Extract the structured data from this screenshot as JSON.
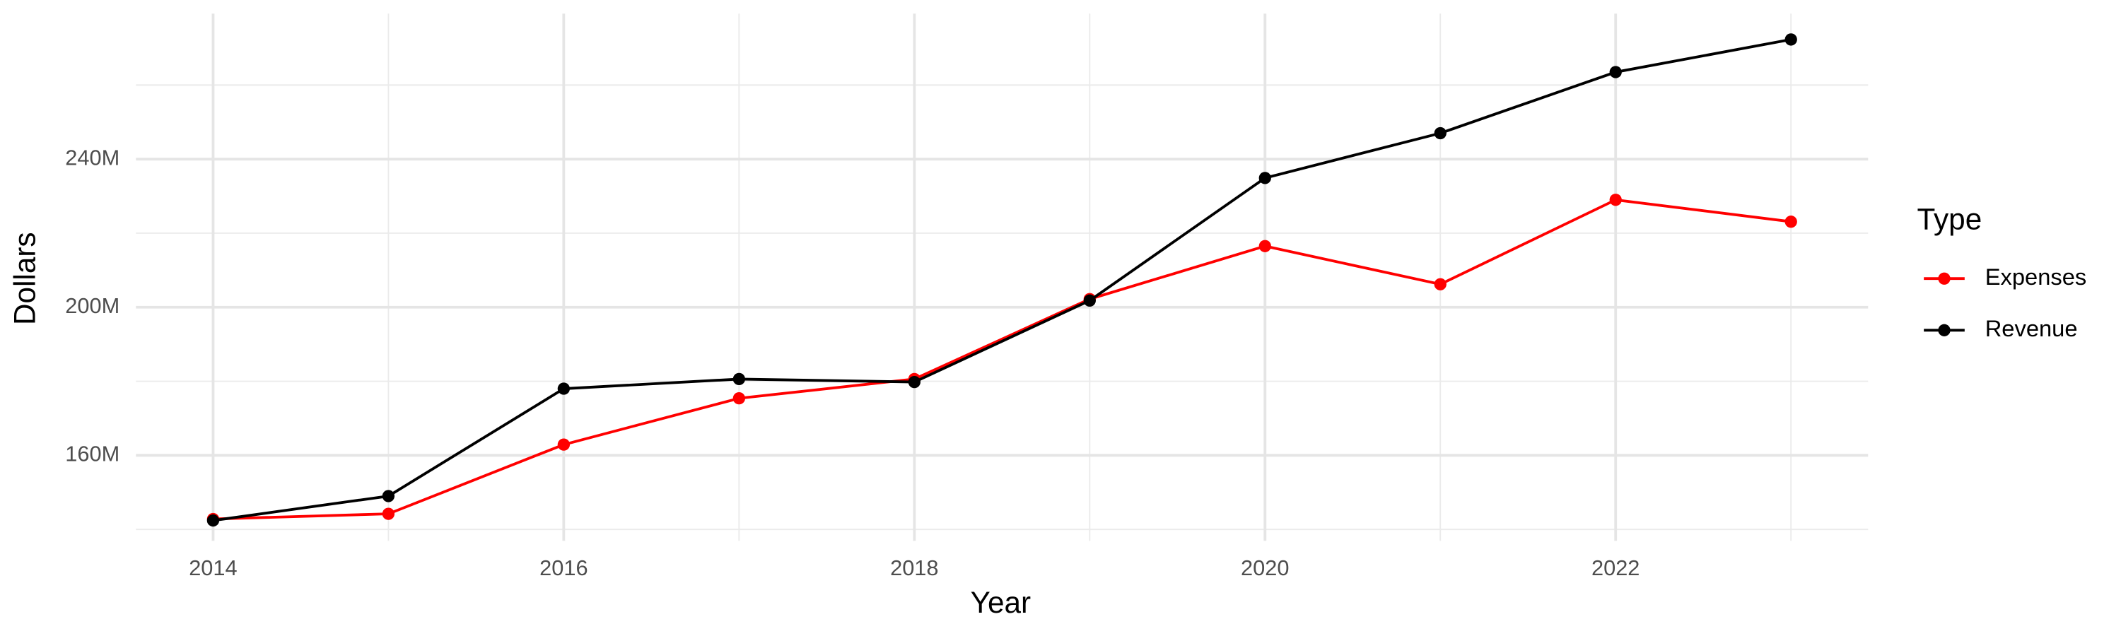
{
  "chart_data": {
    "type": "line",
    "x_label": "Year",
    "y_label": "Dollars",
    "x": [
      2014,
      2015,
      2016,
      2017,
      2018,
      2019,
      2020,
      2021,
      2022,
      2023
    ],
    "series": [
      {
        "name": "Expenses",
        "color": "#ff0000",
        "values": [
          142800000,
          144200000,
          162900000,
          175400000,
          180600000,
          202200000,
          216500000,
          206200000,
          229000000,
          223100000
        ]
      },
      {
        "name": "Revenue",
        "color": "#000000",
        "values": [
          142400000,
          149000000,
          178000000,
          180600000,
          179800000,
          201800000,
          234900000,
          247000000,
          263500000,
          272300000
        ]
      }
    ],
    "xlim": [
      2013.56,
      2023.44
    ],
    "xticks": [
      2014,
      2016,
      2018,
      2020,
      2022
    ],
    "xminor": [
      2015,
      2017,
      2019,
      2021,
      2023
    ],
    "ylim": [
      136900000,
      279300000
    ],
    "yticks": [
      {
        "value": 160000000,
        "label": "160M"
      },
      {
        "value": 200000000,
        "label": "200M"
      },
      {
        "value": 240000000,
        "label": "240M"
      }
    ],
    "yminor": [
      140000000,
      180000000,
      220000000,
      260000000
    ],
    "grid": true,
    "legend_title": "Type",
    "legend": "right"
  }
}
